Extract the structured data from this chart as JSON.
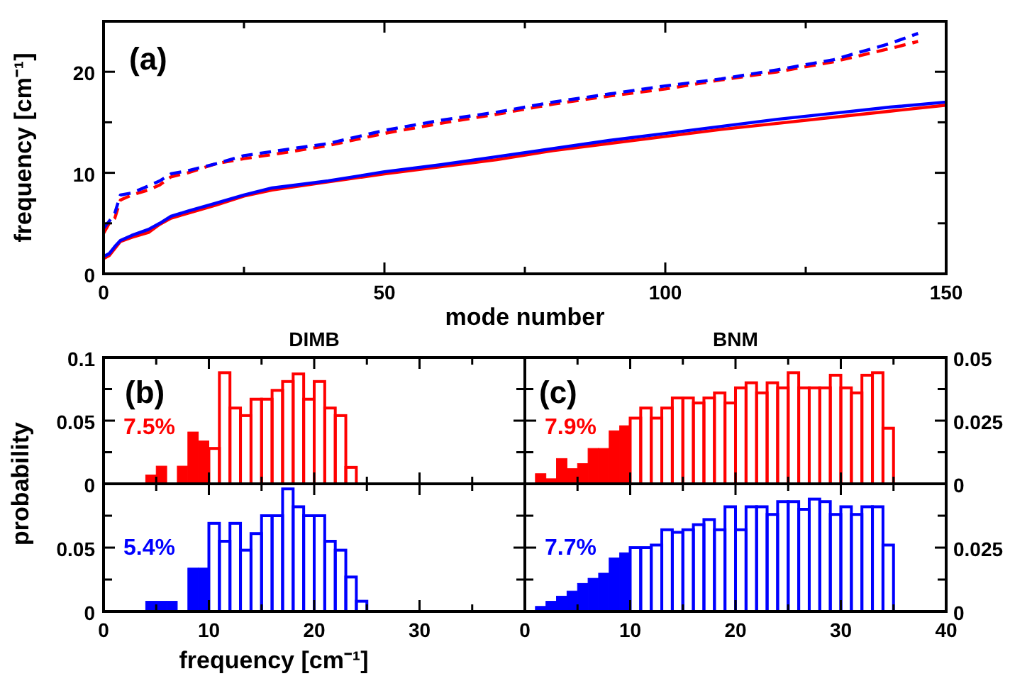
{
  "chart_data": [
    {
      "type": "line",
      "xlabel": "mode number",
      "ylabel": "frequency [cm⁻¹]",
      "annotations": [
        "(a)"
      ],
      "xlim": [
        0,
        150
      ],
      "ylim": [
        0,
        25
      ],
      "xticks": [
        0,
        {
          "value": 25,
          "label": null
        },
        50,
        {
          "value": 75,
          "label": null
        },
        100,
        {
          "value": 125,
          "label": null
        },
        150
      ],
      "yticks": [
        0,
        {
          "value": 5,
          "label": null
        },
        10,
        {
          "value": 15,
          "label": null
        },
        20
      ],
      "series": [
        {
          "color": "#ff0000",
          "line_style": "solid",
          "x": [
            0,
            1,
            2,
            3,
            5,
            8,
            10,
            12,
            15,
            20,
            25,
            30,
            40,
            50,
            60,
            70,
            80,
            90,
            100,
            110,
            120,
            130,
            140,
            150
          ],
          "values": [
            1.5,
            1.8,
            2.5,
            3.2,
            3.6,
            4.1,
            4.9,
            5.5,
            6.0,
            6.8,
            7.7,
            8.3,
            9.1,
            9.9,
            10.6,
            11.3,
            12.2,
            12.9,
            13.6,
            14.3,
            14.9,
            15.5,
            16.1,
            16.7
          ]
        },
        {
          "color": "#0000ff",
          "line_style": "solid",
          "x": [
            0,
            1,
            2,
            3,
            5,
            8,
            10,
            12,
            15,
            20,
            25,
            30,
            40,
            50,
            60,
            70,
            80,
            90,
            100,
            110,
            120,
            130,
            140,
            150
          ],
          "values": [
            1.7,
            2.0,
            2.7,
            3.3,
            3.8,
            4.4,
            5.0,
            5.7,
            6.2,
            7.0,
            7.8,
            8.5,
            9.2,
            10.1,
            10.8,
            11.6,
            12.4,
            13.2,
            13.9,
            14.6,
            15.3,
            15.9,
            16.5,
            17.0
          ]
        },
        {
          "color": "#ff0000",
          "line_style": "dashed",
          "x": [
            0,
            1,
            2,
            3,
            5,
            8,
            10,
            12,
            15,
            20,
            25,
            30,
            40,
            50,
            60,
            70,
            80,
            90,
            100,
            110,
            120,
            130,
            140,
            145
          ],
          "values": [
            4.0,
            5.0,
            5.5,
            7.3,
            7.8,
            8.3,
            8.8,
            9.6,
            10.0,
            10.9,
            11.4,
            11.8,
            12.7,
            13.9,
            14.9,
            15.8,
            16.8,
            17.6,
            18.3,
            19.2,
            20.0,
            21.0,
            22.3,
            23.0
          ]
        },
        {
          "color": "#0000ff",
          "line_style": "dashed",
          "x": [
            0,
            1,
            2,
            3,
            5,
            8,
            10,
            12,
            15,
            20,
            25,
            30,
            40,
            50,
            60,
            70,
            80,
            90,
            100,
            110,
            120,
            130,
            140,
            145
          ],
          "values": [
            4.5,
            5.2,
            6.0,
            7.8,
            8.0,
            8.7,
            9.2,
            9.9,
            10.2,
            10.9,
            11.7,
            12.1,
            12.9,
            14.2,
            15.2,
            16.0,
            17.0,
            17.8,
            18.6,
            19.3,
            20.2,
            21.2,
            22.8,
            23.8
          ]
        }
      ]
    },
    {
      "type": "histogram",
      "title": "DIMB",
      "ylabel": "probability",
      "annotations": [
        "(b)",
        "7.5%"
      ],
      "tick_labels": "y",
      "xlim": [
        0,
        40
      ],
      "ylim": [
        0,
        0.1
      ],
      "xticks": [
        0,
        {
          "value": 5,
          "label": null
        },
        10,
        {
          "value": 15,
          "label": null
        },
        20,
        {
          "value": 25,
          "label": null
        },
        30,
        {
          "value": 35,
          "label": null
        },
        40
      ],
      "yticks": [
        0,
        {
          "value": 0.025,
          "label": null
        },
        0.05,
        {
          "value": 0.075,
          "label": null
        },
        0.1
      ],
      "bins": [
        4,
        5,
        6,
        7,
        8,
        9,
        10,
        11,
        12,
        13,
        14,
        15,
        16,
        17,
        18,
        19,
        20,
        21,
        22,
        23,
        24
      ],
      "series": [
        {
          "color": "#ff0000",
          "values": [
            0.007,
            0.014,
            null,
            0.014,
            0.041,
            0.034,
            null,
            null,
            null,
            null,
            null,
            null,
            null,
            null,
            null,
            null,
            null,
            null,
            null,
            null
          ]
        },
        {
          "color": "#ff0000",
          "values": [
            null,
            null,
            null,
            null,
            null,
            null,
            0.028,
            0.088,
            0.06,
            0.054,
            0.067,
            0.067,
            0.074,
            0.081,
            0.087,
            0.067,
            0.081,
            0.06,
            0.054,
            0.013
          ]
        }
      ]
    },
    {
      "type": "histogram",
      "xlabel": "frequency [cm⁻¹]",
      "annotations": [
        "5.4%"
      ],
      "xlim": [
        0,
        40
      ],
      "ylim": [
        0,
        0.1
      ],
      "xticks": [
        0,
        {
          "value": 5,
          "label": null
        },
        10,
        {
          "value": 15,
          "label": null
        },
        20,
        {
          "value": 25,
          "label": null
        },
        30,
        {
          "value": 35,
          "label": null
        },
        {
          "value": 40,
          "label": null
        }
      ],
      "yticks": [
        0,
        {
          "value": 0.025,
          "label": null
        },
        0.05,
        {
          "value": 0.075,
          "label": null
        },
        {
          "value": 0.1,
          "label": null
        }
      ],
      "bins": [
        4,
        5,
        6,
        7,
        8,
        9,
        10,
        11,
        12,
        13,
        14,
        15,
        16,
        17,
        18,
        19,
        20,
        21,
        22,
        23,
        24,
        25
      ],
      "series": [
        {
          "color": "#0000ff",
          "values": [
            0.008,
            0.008,
            0.008,
            null,
            0.034,
            0.034,
            null,
            null,
            null,
            null,
            null,
            null,
            null,
            null,
            null,
            null,
            null,
            null,
            null,
            null,
            null
          ]
        },
        {
          "color": "#0000ff",
          "values": [
            null,
            null,
            null,
            null,
            null,
            null,
            0.069,
            0.055,
            0.069,
            0.048,
            0.061,
            0.075,
            0.075,
            0.096,
            0.082,
            0.075,
            0.075,
            0.055,
            0.048,
            0.027,
            0.008
          ]
        }
      ]
    },
    {
      "type": "histogram",
      "title": "BNM",
      "annotations": [
        "(c)",
        "7.9%"
      ],
      "tick_labels": "y",
      "xlim": [
        0,
        40
      ],
      "ylim": [
        0,
        0.05
      ],
      "xticks": [
        0,
        {
          "value": 5,
          "label": null
        },
        10,
        {
          "value": 15,
          "label": null
        },
        20,
        {
          "value": 25,
          "label": null
        },
        30,
        {
          "value": 35,
          "label": null
        },
        40
      ],
      "yticks": [
        0,
        {
          "value": 0.0125,
          "label": null
        },
        0.025,
        {
          "value": 0.0375,
          "label": null
        },
        0.05
      ],
      "bins": [
        1,
        2,
        3,
        4,
        5,
        6,
        7,
        8,
        9,
        10,
        11,
        12,
        13,
        14,
        15,
        16,
        17,
        18,
        19,
        20,
        21,
        22,
        23,
        24,
        25,
        26,
        27,
        28,
        29,
        30,
        31,
        32,
        33,
        34,
        35
      ],
      "series": [
        {
          "color": "#ff0000",
          "values": [
            0.004,
            0.002,
            0.01,
            0.006,
            0.008,
            0.014,
            0.014,
            0.021,
            0.023,
            null,
            null,
            null,
            null,
            null,
            null,
            null,
            null,
            null,
            null,
            null,
            null,
            null,
            null,
            null,
            null,
            null,
            null,
            null,
            null,
            null,
            null,
            null,
            null,
            null
          ]
        },
        {
          "color": "#ff0000",
          "values": [
            null,
            null,
            null,
            null,
            null,
            null,
            null,
            null,
            null,
            0.026,
            0.03,
            0.026,
            0.03,
            0.034,
            0.034,
            0.032,
            0.034,
            0.036,
            0.032,
            0.038,
            0.04,
            0.036,
            0.04,
            0.038,
            0.044,
            0.038,
            0.038,
            0.038,
            0.043,
            0.038,
            0.036,
            0.043,
            0.044,
            0.022
          ]
        }
      ]
    },
    {
      "type": "histogram",
      "annotations": [
        "7.7%"
      ],
      "xlim": [
        0,
        40
      ],
      "ylim": [
        0,
        0.05
      ],
      "xticks": [
        0,
        {
          "value": 5,
          "label": null
        },
        10,
        {
          "value": 15,
          "label": null
        },
        20,
        {
          "value": 25,
          "label": null
        },
        30,
        {
          "value": 35,
          "label": null
        },
        40
      ],
      "yticks": [
        0,
        {
          "value": 0.0125,
          "label": null
        },
        0.025,
        {
          "value": 0.0375,
          "label": null
        },
        {
          "value": 0.05,
          "label": null
        }
      ],
      "bins": [
        1,
        2,
        3,
        4,
        5,
        6,
        7,
        8,
        9,
        10,
        11,
        12,
        13,
        14,
        15,
        16,
        17,
        18,
        19,
        20,
        21,
        22,
        23,
        24,
        25,
        26,
        27,
        28,
        29,
        30,
        31,
        32,
        33,
        34,
        35
      ],
      "series": [
        {
          "color": "#0000ff",
          "values": [
            0.002,
            0.004,
            0.006,
            0.008,
            0.011,
            0.013,
            0.015,
            0.021,
            0.023,
            null,
            null,
            null,
            null,
            null,
            null,
            null,
            null,
            null,
            null,
            null,
            null,
            null,
            null,
            null,
            null,
            null,
            null,
            null,
            null,
            null,
            null,
            null,
            null,
            null
          ]
        },
        {
          "color": "#0000ff",
          "values": [
            null,
            null,
            null,
            null,
            null,
            null,
            null,
            null,
            null,
            0.025,
            0.025,
            0.026,
            0.032,
            0.031,
            0.032,
            0.034,
            0.036,
            0.032,
            0.041,
            0.032,
            0.041,
            0.041,
            0.038,
            0.043,
            0.043,
            0.04,
            0.044,
            0.043,
            0.038,
            0.041,
            0.038,
            0.041,
            0.041,
            0.026
          ]
        }
      ]
    }
  ]
}
